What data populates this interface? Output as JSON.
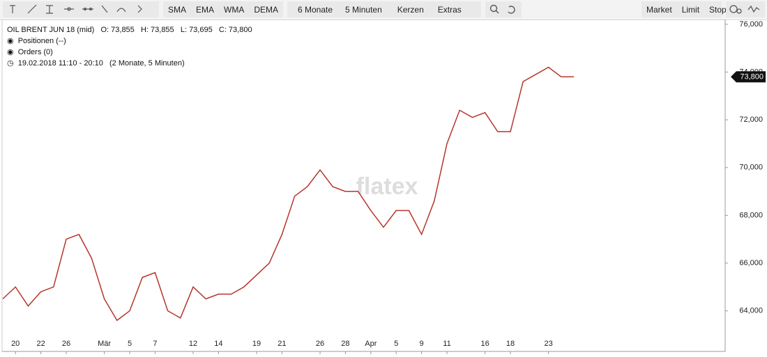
{
  "toolbar": {
    "indicators": [
      "SMA",
      "EMA",
      "WMA",
      "DEMA"
    ],
    "period": "6 Monate",
    "interval": "5 Minuten",
    "style": "Kerzen",
    "extras": "Extras",
    "orders": [
      "Market",
      "Limit",
      "Stop"
    ]
  },
  "info": {
    "instrument": "OIL BRENT JUN 18 (mid)",
    "ohlc": "O: 73,855   H: 73,855   L: 73,695   C: 73,800",
    "positions": "Positionen (--)",
    "orders": "Orders (0)",
    "range": "19.02.2018 11:10 - 20:10   (2 Monate, 5 Minuten)"
  },
  "watermark": "flatex",
  "chart_data": {
    "type": "line",
    "color": "#b5352a",
    "categories": [
      null,
      "20",
      null,
      "22",
      null,
      "26",
      null,
      null,
      "Mär",
      null,
      "5",
      null,
      "7",
      null,
      null,
      "12",
      null,
      "14",
      null,
      null,
      "19",
      null,
      "21",
      null,
      null,
      "26",
      null,
      "28",
      null,
      "Apr",
      null,
      "5",
      null,
      "9",
      null,
      "11",
      null,
      null,
      "16",
      null,
      "18",
      null,
      null,
      "23",
      null,
      null
    ],
    "values": [
      64500,
      65000,
      64200,
      64800,
      65000,
      67000,
      67200,
      66200,
      64500,
      63600,
      64000,
      65400,
      65600,
      64000,
      63700,
      65000,
      64500,
      64700,
      64700,
      65000,
      65500,
      66000,
      67200,
      68800,
      69200,
      69900,
      69200,
      69000,
      69000,
      68200,
      67500,
      68200,
      68200,
      67200,
      68600,
      71000,
      72400,
      72100,
      72300,
      71500,
      71500,
      73600,
      73900,
      74200,
      73800,
      73800
    ],
    "ylim": [
      62300,
      76200
    ],
    "yticks": [
      {
        "value": 64000,
        "label": "64,000"
      },
      {
        "value": 66000,
        "label": "66,000"
      },
      {
        "value": 68000,
        "label": "68,000"
      },
      {
        "value": 70000,
        "label": "70,000"
      },
      {
        "value": 72000,
        "label": "72,000"
      },
      {
        "value": 74000,
        "label": "74,000"
      },
      {
        "value": 76000,
        "label": "76,000"
      }
    ],
    "last_price": 73800,
    "last_price_label": "73,800",
    "grid": false
  }
}
